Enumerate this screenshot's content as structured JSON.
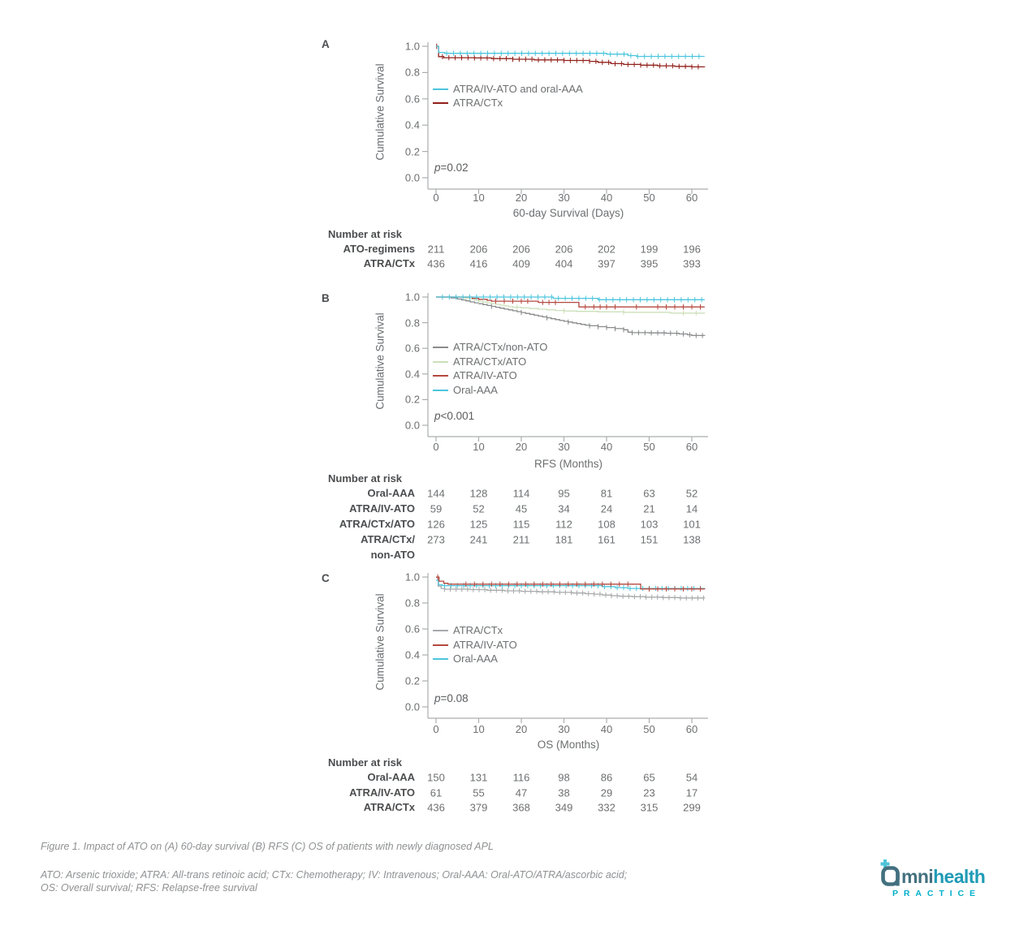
{
  "figure": {
    "caption": "Figure 1. Impact of ATO on (A) 60-day survival (B) RFS (C) OS of patients with newly diagnosed APL",
    "abbreviations": "ATO: Arsenic trioxide; ATRA: All-trans retinoic acid; CTx: Chemotherapy; IV: Intravenous; Oral-AAA: Oral-ATO/ATRA/ascorbic acid;\nOS: Overall survival; RFS: Relapse-free survival"
  },
  "logo": {
    "brand_prefix": "mni",
    "brand_suffix": "health",
    "subtext": "PRACTICE",
    "colors": {
      "slate": "#43707f",
      "teal": "#1f9bb6",
      "cyan": "#02afca"
    }
  },
  "colors": {
    "axis": "#abadaf",
    "cyan": "#4cc5dd",
    "dark_red": "#91201a",
    "red": "#b4483f",
    "green": "#cbe0ba",
    "gray_b": "#898b8d",
    "gray_c": "#a7a9ab"
  },
  "chart_data": [
    {
      "type": "line",
      "panel_label": "A",
      "ylabel": "Cumulative Survival",
      "xlabel": "60-day Survival (Days)",
      "p_label": "p",
      "p_value": "=0.02",
      "xlim": [
        0,
        63
      ],
      "ylim": [
        0,
        1.0
      ],
      "x_ticks": [
        0,
        10,
        20,
        30,
        40,
        50,
        60
      ],
      "x_tick_labels": [
        "0",
        "10",
        "20",
        "30",
        "40",
        "50",
        "60"
      ],
      "y_ticks": [
        1.0,
        0.8,
        0.6,
        0.4,
        0.2,
        0.0
      ],
      "y_tick_labels": [
        "1.0",
        "0.8",
        "0.6",
        "0.4",
        "0.2",
        "0.0"
      ],
      "legend": [
        {
          "label": "ATRA/IV-ATO and oral-AAA",
          "color": "#4cc5dd"
        },
        {
          "label": "ATRA/CTx",
          "color": "#91201a"
        }
      ],
      "series": [
        {
          "name": "ATRA/CTx",
          "color": "#91201a",
          "steps": [
            [
              0,
              1.0
            ],
            [
              0.6,
              0.921
            ],
            [
              1.8,
              0.913
            ],
            [
              9,
              0.911
            ],
            [
              13,
              0.906
            ],
            [
              18,
              0.901
            ],
            [
              23,
              0.896
            ],
            [
              30,
              0.892
            ],
            [
              36,
              0.885
            ],
            [
              38,
              0.878
            ],
            [
              41,
              0.868
            ],
            [
              44,
              0.862
            ],
            [
              48,
              0.856
            ],
            [
              52,
              0.851
            ],
            [
              56,
              0.847
            ],
            [
              60,
              0.843
            ],
            [
              63,
              0.842
            ]
          ],
          "censors": [
            0.15
          ],
          "censor_range": [
            1.5,
            62.5,
            1.5
          ]
        },
        {
          "name": "ATRA/IV-ATO and oral-AAA",
          "color": "#4cc5dd",
          "steps": [
            [
              0,
              1.0
            ],
            [
              0.6,
              0.953
            ],
            [
              2,
              0.946
            ],
            [
              40,
              0.94
            ],
            [
              45,
              0.929
            ],
            [
              47,
              0.923
            ],
            [
              63,
              0.923
            ]
          ],
          "censor_range": [
            2.5,
            62.5,
            1.6
          ]
        }
      ],
      "number_at_risk": {
        "header": "Number at risk",
        "rows": [
          {
            "label": "ATO-regimens",
            "values": [
              211,
              206,
              206,
              206,
              202,
              199,
              196
            ]
          },
          {
            "label": "ATRA/CTx",
            "values": [
              436,
              416,
              409,
              404,
              397,
              395,
              393
            ]
          }
        ]
      }
    },
    {
      "type": "line",
      "panel_label": "B",
      "ylabel": "Cumulative Survival",
      "xlabel": "RFS (Months)",
      "p_label": "p",
      "p_value": "<0.001",
      "xlim": [
        0,
        63
      ],
      "ylim": [
        0,
        1.0
      ],
      "x_ticks": [
        0,
        10,
        20,
        30,
        40,
        50,
        60
      ],
      "x_tick_labels": [
        "0",
        "10",
        "20",
        "30",
        "40",
        "50",
        "60"
      ],
      "y_ticks": [
        1.0,
        0.8,
        0.6,
        0.4,
        0.2,
        0.0
      ],
      "y_tick_labels": [
        "1.0",
        "0.8",
        "0.6",
        "0.4",
        "0.2",
        "0.0"
      ],
      "legend": [
        {
          "label": "ATRA/CTx/non-ATO",
          "color": "#898b8d"
        },
        {
          "label": "ATRA/CTx/ATO",
          "color": "#cbe0ba"
        },
        {
          "label": "ATRA/IV-ATO",
          "color": "#b4483f"
        },
        {
          "label": "Oral-AAA",
          "color": "#4cc5dd"
        }
      ],
      "series": [
        {
          "name": "ATRA/CTx/non-ATO",
          "color": "#898b8d",
          "steps": [
            [
              0,
              1.0
            ],
            [
              3.5,
              0.993
            ],
            [
              5,
              0.985
            ],
            [
              6,
              0.977
            ],
            [
              7,
              0.97
            ],
            [
              8,
              0.962
            ],
            [
              9,
              0.955
            ],
            [
              10,
              0.948
            ],
            [
              11,
              0.941
            ],
            [
              12,
              0.934
            ],
            [
              13,
              0.927
            ],
            [
              14,
              0.92
            ],
            [
              15,
              0.913
            ],
            [
              16,
              0.906
            ],
            [
              17,
              0.9
            ],
            [
              18,
              0.893
            ],
            [
              19,
              0.886
            ],
            [
              20,
              0.879
            ],
            [
              21,
              0.872
            ],
            [
              22,
              0.865
            ],
            [
              23,
              0.858
            ],
            [
              24,
              0.851
            ],
            [
              25,
              0.845
            ],
            [
              26,
              0.838
            ],
            [
              27,
              0.831
            ],
            [
              28,
              0.824
            ],
            [
              29,
              0.817
            ],
            [
              30,
              0.811
            ],
            [
              31,
              0.805
            ],
            [
              32,
              0.799
            ],
            [
              33,
              0.793
            ],
            [
              34,
              0.787
            ],
            [
              35,
              0.781
            ],
            [
              36,
              0.776
            ],
            [
              38,
              0.769
            ],
            [
              40,
              0.762
            ],
            [
              42,
              0.754
            ],
            [
              44,
              0.745
            ],
            [
              45,
              0.726
            ],
            [
              46,
              0.722
            ],
            [
              50,
              0.72
            ],
            [
              54,
              0.718
            ],
            [
              57,
              0.712
            ],
            [
              59,
              0.706
            ],
            [
              60,
              0.7
            ],
            [
              63,
              0.697
            ]
          ],
          "censors": [
            13,
            20,
            26,
            31,
            36,
            38,
            40,
            42,
            44,
            46,
            47.5,
            49,
            50.5,
            52,
            53.5,
            55,
            56.5,
            58,
            59.5,
            61,
            62.5
          ]
        },
        {
          "name": "ATRA/CTx/ATO",
          "color": "#cbe0ba",
          "steps": [
            [
              0,
              1.0
            ],
            [
              6.5,
              0.992
            ],
            [
              8,
              0.984
            ],
            [
              9,
              0.976
            ],
            [
              10,
              0.968
            ],
            [
              11,
              0.961
            ],
            [
              12,
              0.955
            ],
            [
              13,
              0.949
            ],
            [
              14,
              0.943
            ],
            [
              15,
              0.937
            ],
            [
              16,
              0.931
            ],
            [
              17,
              0.925
            ],
            [
              18,
              0.92
            ],
            [
              20,
              0.915
            ],
            [
              22,
              0.91
            ],
            [
              24,
              0.905
            ],
            [
              26,
              0.9
            ],
            [
              28,
              0.895
            ],
            [
              30,
              0.891
            ],
            [
              33,
              0.888
            ],
            [
              38,
              0.885
            ],
            [
              44,
              0.881
            ],
            [
              55,
              0.875
            ],
            [
              63,
              0.873
            ]
          ],
          "censors": [
            10,
            19,
            30,
            44,
            58,
            61
          ]
        },
        {
          "name": "ATRA/IV-ATO",
          "color": "#b4483f",
          "steps": [
            [
              0,
              1.0
            ],
            [
              8.5,
              0.99
            ],
            [
              10,
              0.982
            ],
            [
              12,
              0.974
            ],
            [
              13,
              0.968
            ],
            [
              23,
              0.968
            ],
            [
              24,
              0.958
            ],
            [
              33,
              0.958
            ],
            [
              33.5,
              0.923
            ],
            [
              63,
              0.923
            ]
          ],
          "censors": [
            14,
            16,
            18,
            20,
            21.5,
            25,
            26.5,
            28,
            35,
            37,
            38.5,
            40,
            42,
            47,
            52,
            54,
            56,
            58,
            60,
            62
          ]
        },
        {
          "name": "Oral-AAA",
          "color": "#4cc5dd",
          "steps": [
            [
              0,
              1.0
            ],
            [
              27,
              1.0
            ],
            [
              27.5,
              0.99
            ],
            [
              37,
              0.99
            ],
            [
              38,
              0.979
            ],
            [
              63,
              0.979
            ]
          ],
          "censor_range": [
            1.5,
            63,
            1.6
          ]
        }
      ],
      "number_at_risk": {
        "header": "Number at risk",
        "rows": [
          {
            "label": "Oral-AAA",
            "values": [
              144,
              128,
              114,
              95,
              81,
              63,
              52
            ]
          },
          {
            "label": "ATRA/IV-ATO",
            "values": [
              59,
              52,
              45,
              34,
              24,
              21,
              14
            ]
          },
          {
            "label": "ATRA/CTx/ATO",
            "values": [
              126,
              125,
              115,
              112,
              108,
              103,
              101
            ]
          },
          {
            "label": "ATRA/CTx/\nnon-ATO",
            "values": [
              273,
              241,
              211,
              181,
              161,
              151,
              138
            ]
          }
        ]
      }
    },
    {
      "type": "line",
      "panel_label": "C",
      "ylabel": "Cumulative Survival",
      "xlabel": "OS (Months)",
      "p_label": "p",
      "p_value": "=0.08",
      "xlim": [
        0,
        63
      ],
      "ylim": [
        0,
        1.0
      ],
      "x_ticks": [
        0,
        10,
        20,
        30,
        40,
        50,
        60
      ],
      "x_tick_labels": [
        "0",
        "10",
        "20",
        "30",
        "40",
        "50",
        "60"
      ],
      "y_ticks": [
        1.0,
        0.8,
        0.6,
        0.4,
        0.2,
        0.0
      ],
      "y_tick_labels": [
        "1.0",
        "0.8",
        "0.6",
        "0.4",
        "0.2",
        "0.0"
      ],
      "legend": [
        {
          "label": "ATRA/CTx",
          "color": "#a7a9ab"
        },
        {
          "label": "ATRA/IV-ATO",
          "color": "#b4483f"
        },
        {
          "label": "Oral-AAA",
          "color": "#4cc5dd"
        }
      ],
      "series": [
        {
          "name": "ATRA/CTx",
          "color": "#a7a9ab",
          "steps": [
            [
              0,
              0.997
            ],
            [
              0.5,
              0.93
            ],
            [
              1.2,
              0.912
            ],
            [
              2,
              0.906
            ],
            [
              8,
              0.903
            ],
            [
              12,
              0.898
            ],
            [
              16,
              0.894
            ],
            [
              20,
              0.89
            ],
            [
              24,
              0.886
            ],
            [
              28,
              0.882
            ],
            [
              32,
              0.877
            ],
            [
              35,
              0.872
            ],
            [
              37,
              0.868
            ],
            [
              39,
              0.861
            ],
            [
              41,
              0.856
            ],
            [
              43,
              0.852
            ],
            [
              46,
              0.849
            ],
            [
              49,
              0.845
            ],
            [
              53,
              0.842
            ],
            [
              57,
              0.839
            ],
            [
              63,
              0.838
            ]
          ],
          "censor_range": [
            2,
            63,
            1.35
          ]
        },
        {
          "name": "Oral-AAA",
          "color": "#4cc5dd",
          "steps": [
            [
              0,
              0.975
            ],
            [
              0.6,
              0.94
            ],
            [
              1.5,
              0.934
            ],
            [
              37,
              0.934
            ],
            [
              39,
              0.926
            ],
            [
              42,
              0.918
            ],
            [
              45,
              0.912
            ],
            [
              63,
              0.911
            ]
          ],
          "censor_range": [
            2,
            63,
            1.5
          ]
        },
        {
          "name": "ATRA/IV-ATO",
          "color": "#b4483f",
          "steps": [
            [
              0,
              1.0
            ],
            [
              0.7,
              0.968
            ],
            [
              1.8,
              0.952
            ],
            [
              2.8,
              0.945
            ],
            [
              47.5,
              0.945
            ],
            [
              48,
              0.908
            ],
            [
              63,
              0.906
            ]
          ],
          "censors": [
            0.4,
            7,
            9,
            11,
            13,
            15,
            17,
            19,
            21,
            23,
            25,
            27,
            29,
            31,
            33,
            35,
            37,
            39,
            41,
            43,
            45,
            50,
            52,
            54,
            56,
            58,
            60,
            62
          ]
        }
      ],
      "number_at_risk": {
        "header": "Number at risk",
        "rows": [
          {
            "label": "Oral-AAA",
            "values": [
              150,
              131,
              116,
              98,
              86,
              65,
              54
            ]
          },
          {
            "label": "ATRA/IV-ATO",
            "values": [
              61,
              55,
              47,
              38,
              29,
              23,
              17
            ]
          },
          {
            "label": "ATRA/CTx",
            "values": [
              436,
              379,
              368,
              349,
              332,
              315,
              299
            ]
          }
        ]
      }
    }
  ]
}
